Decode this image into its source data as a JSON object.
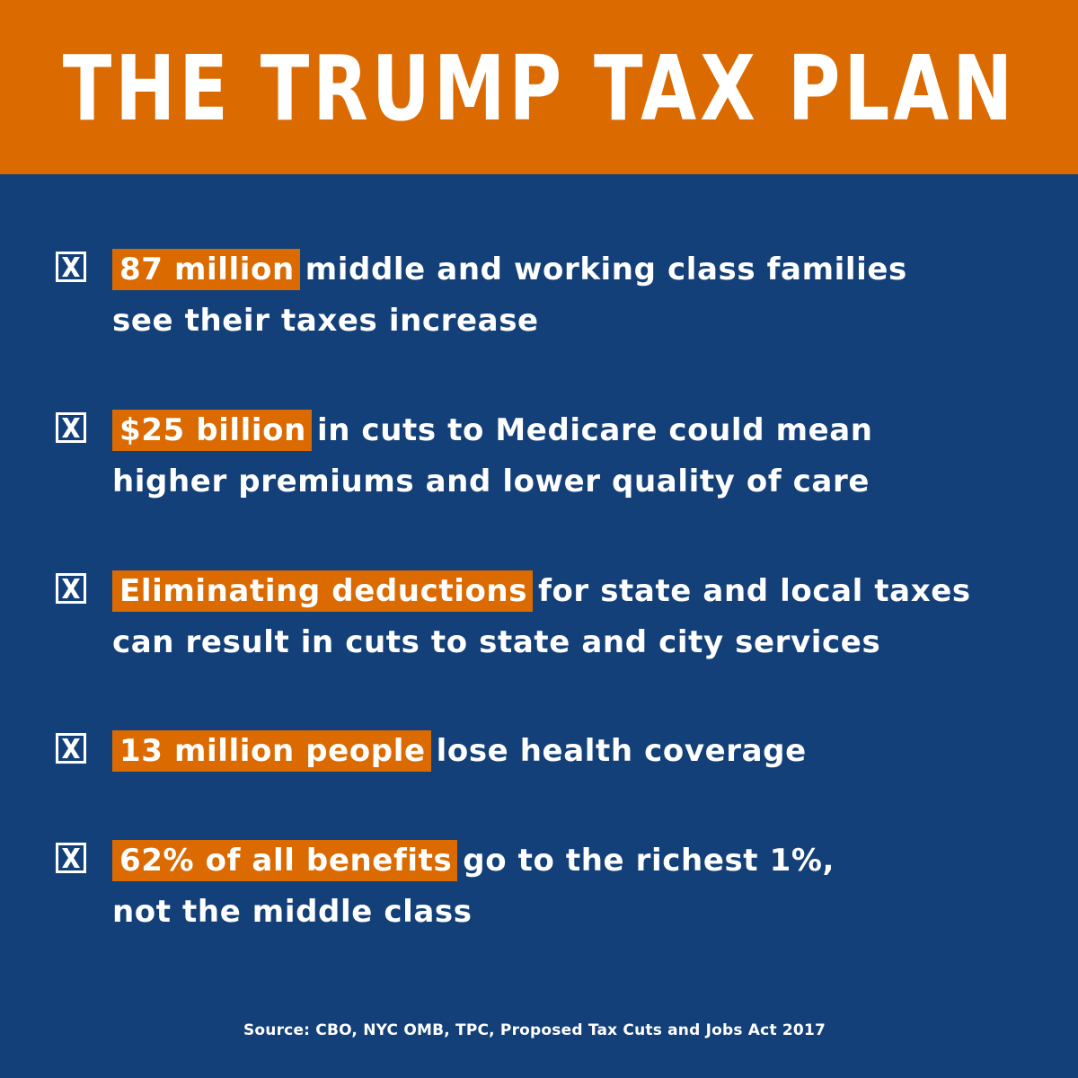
{
  "title": "THE TRUMP TAX PLAN",
  "items": [
    {
      "highlight": "87 million",
      "line1_rest": "middle and working class families",
      "line2": "see their taxes increase"
    },
    {
      "highlight": "$25 billion",
      "line1_rest": "in cuts to Medicare could mean",
      "line2": "higher premiums and lower quality of care"
    },
    {
      "highlight": "Eliminating deductions",
      "line1_rest": "for state and local taxes",
      "line2": "can result in cuts to state and city services"
    },
    {
      "highlight": "13 million people",
      "line1_rest": "lose health coverage",
      "line2": ""
    },
    {
      "highlight": "62% of all benefits",
      "line1_rest": "go to the richest 1%,",
      "line2": "not the middle class"
    }
  ],
  "source": "Source: CBO, NYC OMB, TPC, Proposed Tax Cuts and Jobs Act 2017",
  "colors": {
    "background": "#134079",
    "accent": "#db6a00",
    "text": "#ffffff"
  },
  "icons": {
    "bullet": "x-box-icon"
  }
}
